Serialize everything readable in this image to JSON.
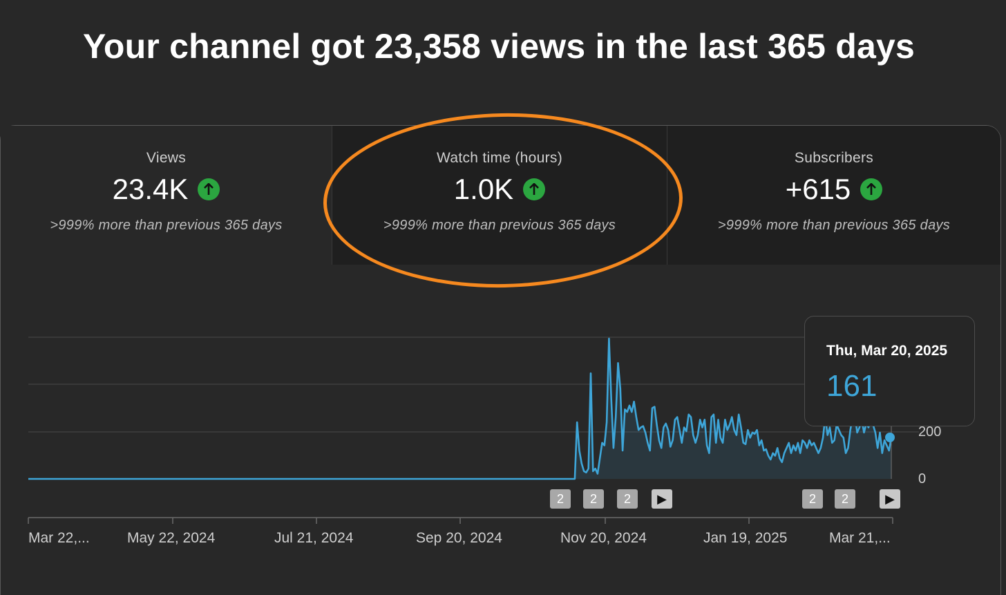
{
  "headline": "Your channel got 23,358 views in the last 365 days",
  "cards": [
    {
      "label": "Views",
      "value": "23.4K",
      "note": ">999% more than previous 365 days",
      "trend_icon": "arrow-up-icon"
    },
    {
      "label": "Watch time (hours)",
      "value": "1.0K",
      "note": ">999% more than previous 365 days",
      "trend_icon": "arrow-up-icon"
    },
    {
      "label": "Subscribers",
      "value": "+615",
      "note": ">999% more than previous 365 days",
      "trend_icon": "arrow-up-icon"
    }
  ],
  "annotation": {
    "color": "#f6891f",
    "target": "Watch time (hours)"
  },
  "tooltip": {
    "date": "Thu, Mar 20, 2025",
    "value": "161"
  },
  "markers": [
    {
      "label": "2"
    },
    {
      "label": "2"
    },
    {
      "label": "2"
    },
    {
      "label": "▶"
    },
    {
      "label": "2"
    },
    {
      "label": "2"
    },
    {
      "label": "▶"
    }
  ],
  "chart_data": {
    "type": "area",
    "x_tick_labels": [
      "Mar 22,...",
      "May 22, 2024",
      "Jul 21, 2024",
      "Sep 20, 2024",
      "Nov 20, 2024",
      "Jan 19, 2025",
      "Mar 21,..."
    ],
    "y_tick_labels": [
      "0",
      "200"
    ],
    "ylim": [
      0,
      550
    ],
    "line_color": "#3ea6d9",
    "series": [
      {
        "values": [
          0,
          0,
          0,
          0,
          0,
          0,
          0,
          0,
          0,
          0,
          0,
          0,
          0,
          0,
          0,
          0,
          0,
          0,
          0,
          0,
          0,
          0,
          0,
          0,
          0,
          0,
          0,
          0,
          0,
          0,
          0,
          0,
          0,
          0,
          0,
          0,
          0,
          0,
          0,
          0,
          0,
          0,
          0,
          0,
          0,
          0,
          0,
          0,
          0,
          0,
          0,
          0,
          0,
          0,
          0,
          0,
          0,
          0,
          0,
          0,
          0,
          0,
          0,
          0,
          0,
          0,
          0,
          0,
          0,
          0,
          0,
          0,
          0,
          0,
          0,
          0,
          0,
          0,
          0,
          0,
          0,
          0,
          0,
          0,
          0,
          0,
          0,
          0,
          0,
          0,
          0,
          0,
          0,
          0,
          0,
          0,
          0,
          0,
          0,
          0,
          0,
          0,
          0,
          0,
          0,
          0,
          0,
          0,
          0,
          0,
          0,
          0,
          0,
          0,
          0,
          0,
          0,
          0,
          0,
          0,
          0,
          0,
          0,
          0,
          0,
          0,
          0,
          0,
          0,
          0,
          0,
          0,
          0,
          0,
          0,
          0,
          0,
          0,
          0,
          0,
          0,
          0,
          0,
          0,
          0,
          0,
          0,
          0,
          0,
          0,
          0,
          0,
          0,
          0,
          0,
          0,
          0,
          0,
          0,
          0,
          0,
          0,
          0,
          0,
          0,
          0,
          0,
          0,
          0,
          0,
          0,
          0,
          0,
          0,
          0,
          0,
          0,
          0,
          0,
          0,
          0,
          0,
          0,
          0,
          0,
          0,
          0,
          0,
          0,
          0,
          0,
          0,
          0,
          0,
          0,
          0,
          0,
          0,
          0,
          0,
          0,
          0,
          0,
          0,
          0,
          0,
          0,
          0,
          0,
          0,
          0,
          0,
          0,
          0,
          0,
          0,
          0,
          0,
          0,
          0,
          0,
          0,
          0,
          0,
          0,
          0,
          0,
          0,
          0,
          0,
          0,
          0,
          0,
          0,
          0,
          0,
          0,
          0,
          0,
          0,
          0,
          220,
          110,
          60,
          30,
          25,
          40,
          410,
          30,
          40,
          20,
          80,
          140,
          130,
          220,
          545,
          310,
          120,
          240,
          450,
          350,
          110,
          270,
          260,
          285,
          260,
          300,
          240,
          190,
          200,
          205,
          180,
          140,
          110,
          275,
          280,
          210,
          150,
          120,
          200,
          215,
          190,
          125,
          150,
          230,
          240,
          190,
          140,
          200,
          185,
          250,
          240,
          170,
          140,
          170,
          230,
          200,
          230,
          130,
          100,
          240,
          250,
          140,
          230,
          160,
          140,
          230,
          190,
          210,
          240,
          190,
          170,
          250,
          200,
          140,
          135,
          190,
          160,
          180,
          175,
          190,
          130,
          150,
          110,
          115,
          90,
          75,
          100,
          90,
          120,
          80,
          65,
          100,
          120,
          140,
          100,
          130,
          110,
          140,
          100,
          150,
          140,
          120,
          150,
          130,
          140,
          120,
          100,
          120,
          160,
          240,
          170,
          200,
          140,
          150,
          210,
          190,
          170,
          160,
          100,
          120,
          190,
          240,
          250,
          180,
          200,
          230,
          180,
          215,
          200,
          230,
          210,
          180,
          120,
          180,
          100,
          150,
          130,
          110,
          161
        ]
      }
    ]
  }
}
